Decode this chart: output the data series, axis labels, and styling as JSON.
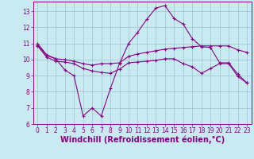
{
  "title": "",
  "xlabel": "Windchill (Refroidissement éolien,°C)",
  "bg_color": "#c8eaf0",
  "grid_color": "#a0ccd4",
  "line_color": "#880088",
  "xlim": [
    -0.5,
    23.5
  ],
  "ylim": [
    6.0,
    13.6
  ],
  "yticks": [
    6,
    7,
    8,
    9,
    10,
    11,
    12,
    13
  ],
  "xticks": [
    0,
    1,
    2,
    3,
    4,
    5,
    6,
    7,
    8,
    9,
    10,
    11,
    12,
    13,
    14,
    15,
    16,
    17,
    18,
    19,
    20,
    21,
    22,
    23
  ],
  "series": {
    "line1_x": [
      0,
      1,
      2,
      3,
      4,
      5,
      6,
      7,
      8,
      9,
      10,
      11,
      12,
      13,
      14,
      15,
      16,
      17,
      18,
      19,
      20,
      21,
      22,
      23
    ],
    "line1_y": [
      11.0,
      10.3,
      10.05,
      9.35,
      9.0,
      6.5,
      7.0,
      6.5,
      8.2,
      9.75,
      11.0,
      11.7,
      12.5,
      13.2,
      13.35,
      12.55,
      12.2,
      11.3,
      10.8,
      10.75,
      9.8,
      9.8,
      9.1,
      8.55
    ],
    "line2_x": [
      0,
      1,
      2,
      3,
      4,
      5,
      6,
      7,
      8,
      9,
      10,
      11,
      12,
      13,
      14,
      15,
      16,
      17,
      18,
      19,
      20,
      21,
      22,
      23
    ],
    "line2_y": [
      10.9,
      10.25,
      10.05,
      10.0,
      9.9,
      9.75,
      9.65,
      9.75,
      9.75,
      9.8,
      10.2,
      10.35,
      10.45,
      10.55,
      10.65,
      10.7,
      10.75,
      10.8,
      10.85,
      10.85,
      10.85,
      10.85,
      10.6,
      10.45
    ],
    "line3_x": [
      0,
      1,
      2,
      3,
      4,
      5,
      6,
      7,
      8,
      9,
      10,
      11,
      12,
      13,
      14,
      15,
      16,
      17,
      18,
      19,
      20,
      21,
      22,
      23
    ],
    "line3_y": [
      10.85,
      10.15,
      9.9,
      9.85,
      9.75,
      9.45,
      9.3,
      9.2,
      9.15,
      9.4,
      9.8,
      9.85,
      9.9,
      9.95,
      10.05,
      10.05,
      9.75,
      9.55,
      9.15,
      9.45,
      9.75,
      9.75,
      8.95,
      8.55
    ]
  },
  "font_color": "#880088",
  "tick_label_size": 5.5,
  "xlabel_size": 7.0
}
